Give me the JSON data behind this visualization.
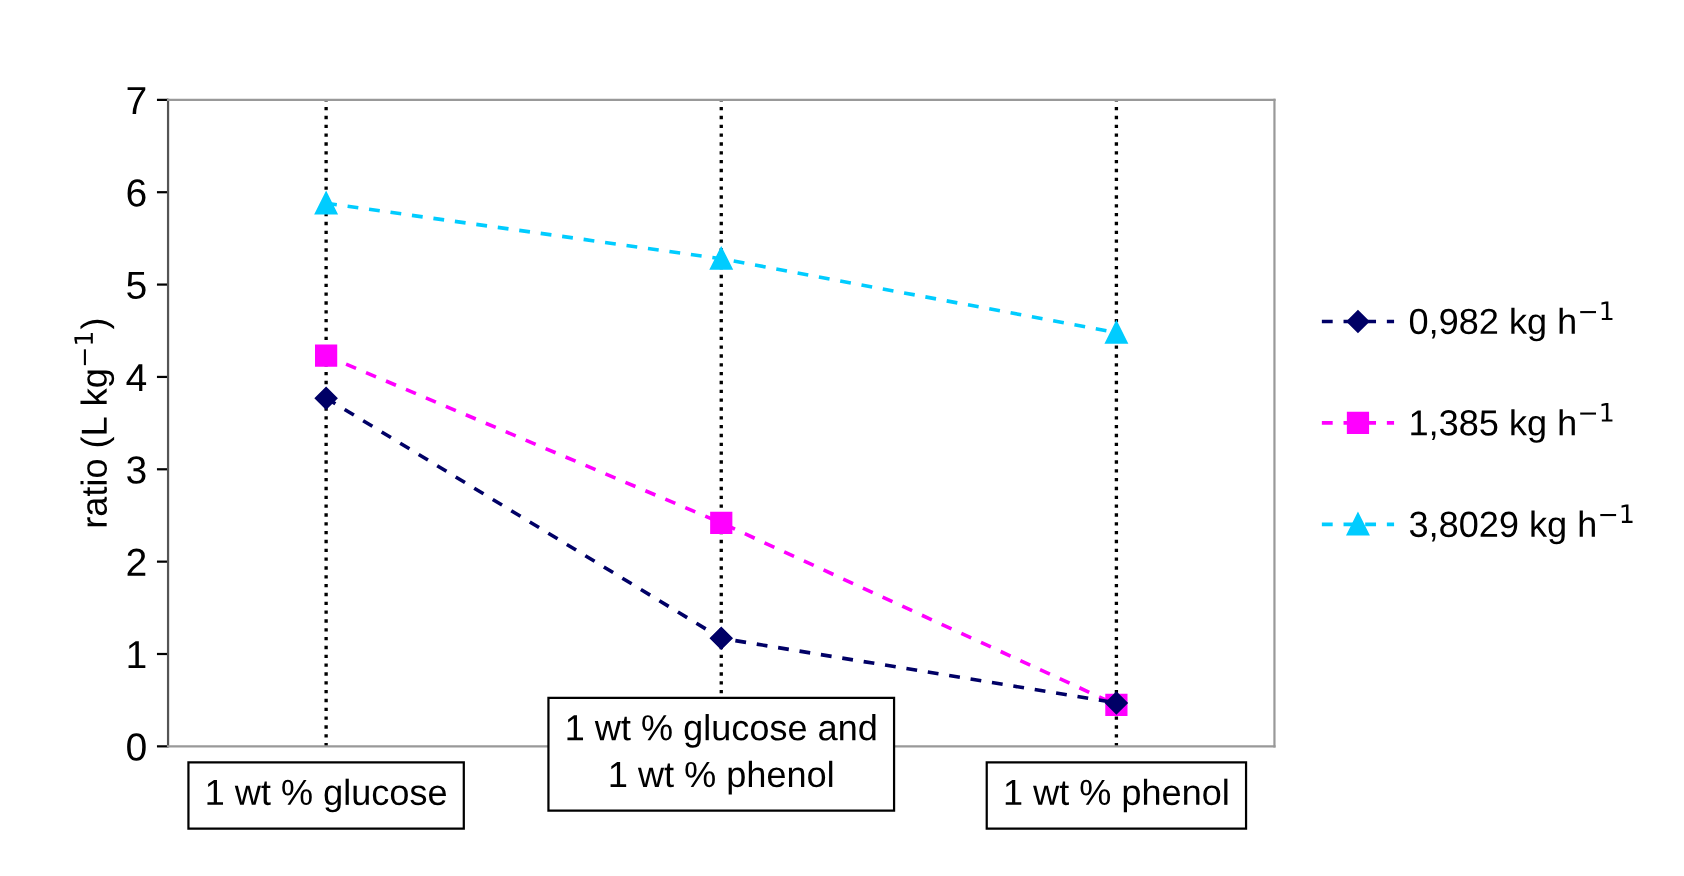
{
  "chart_data": {
    "type": "line",
    "ylabel": "ratio (L kg$^{−1}$)",
    "categories": [
      "1 wt % glucose",
      "1 wt % glucose and\n1 wt % phenol",
      "1 wt % phenol"
    ],
    "series": [
      {
        "name": "0,982 kg h$^{−1}$",
        "color": "#000066",
        "marker": "diamond",
        "values": [
          3.77,
          1.17,
          0.47
        ]
      },
      {
        "name": "1,385 kg h$^{−1}$",
        "color": "#ff00ff",
        "marker": "square",
        "values": [
          4.23,
          2.42,
          0.45
        ]
      },
      {
        "name": "3,8029 kg h$^{−1}$",
        "color": "#00ccff",
        "marker": "triangle",
        "values": [
          5.88,
          5.28,
          4.48
        ]
      }
    ],
    "ylim": [
      0,
      7
    ],
    "yticks": [
      0,
      1,
      2,
      3,
      4,
      5,
      6,
      7
    ],
    "grid": "x",
    "legend": "right",
    "line_style": "dashed"
  }
}
